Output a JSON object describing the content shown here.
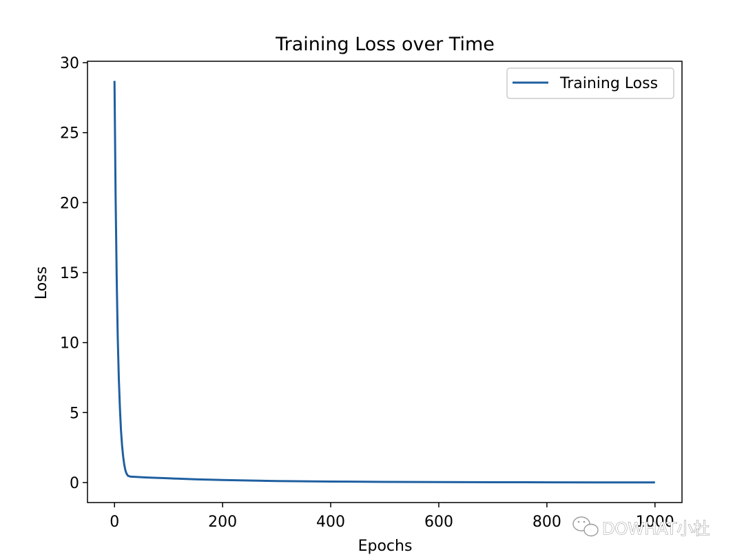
{
  "chart_data": {
    "type": "line",
    "title": "Training Loss over Time",
    "xlabel": "Epochs",
    "ylabel": "Loss",
    "xlim": [
      -50,
      1050
    ],
    "ylim": [
      -1.43,
      30.1
    ],
    "xticks": [
      0,
      200,
      400,
      600,
      800,
      1000
    ],
    "yticks": [
      0,
      5,
      10,
      15,
      20,
      25,
      30
    ],
    "grid": false,
    "legend": "top-right",
    "series": [
      {
        "name": "Training Loss",
        "color": "#1f5fa0",
        "x": [
          0,
          2,
          4,
          6,
          8,
          10,
          12,
          14,
          16,
          18,
          20,
          22,
          25,
          30,
          40,
          60,
          100,
          150,
          200,
          300,
          400,
          500,
          600,
          700,
          800,
          900,
          1000
        ],
        "y": [
          28.7,
          20.5,
          14.6,
          10.4,
          7.4,
          5.3,
          3.75,
          2.65,
          1.85,
          1.3,
          0.9,
          0.65,
          0.48,
          0.42,
          0.4,
          0.36,
          0.3,
          0.23,
          0.18,
          0.11,
          0.07,
          0.045,
          0.03,
          0.02,
          0.015,
          0.01,
          0.008
        ]
      }
    ]
  },
  "watermark": {
    "text": "DOWHAT小杜",
    "icon": "wechat-icon"
  }
}
